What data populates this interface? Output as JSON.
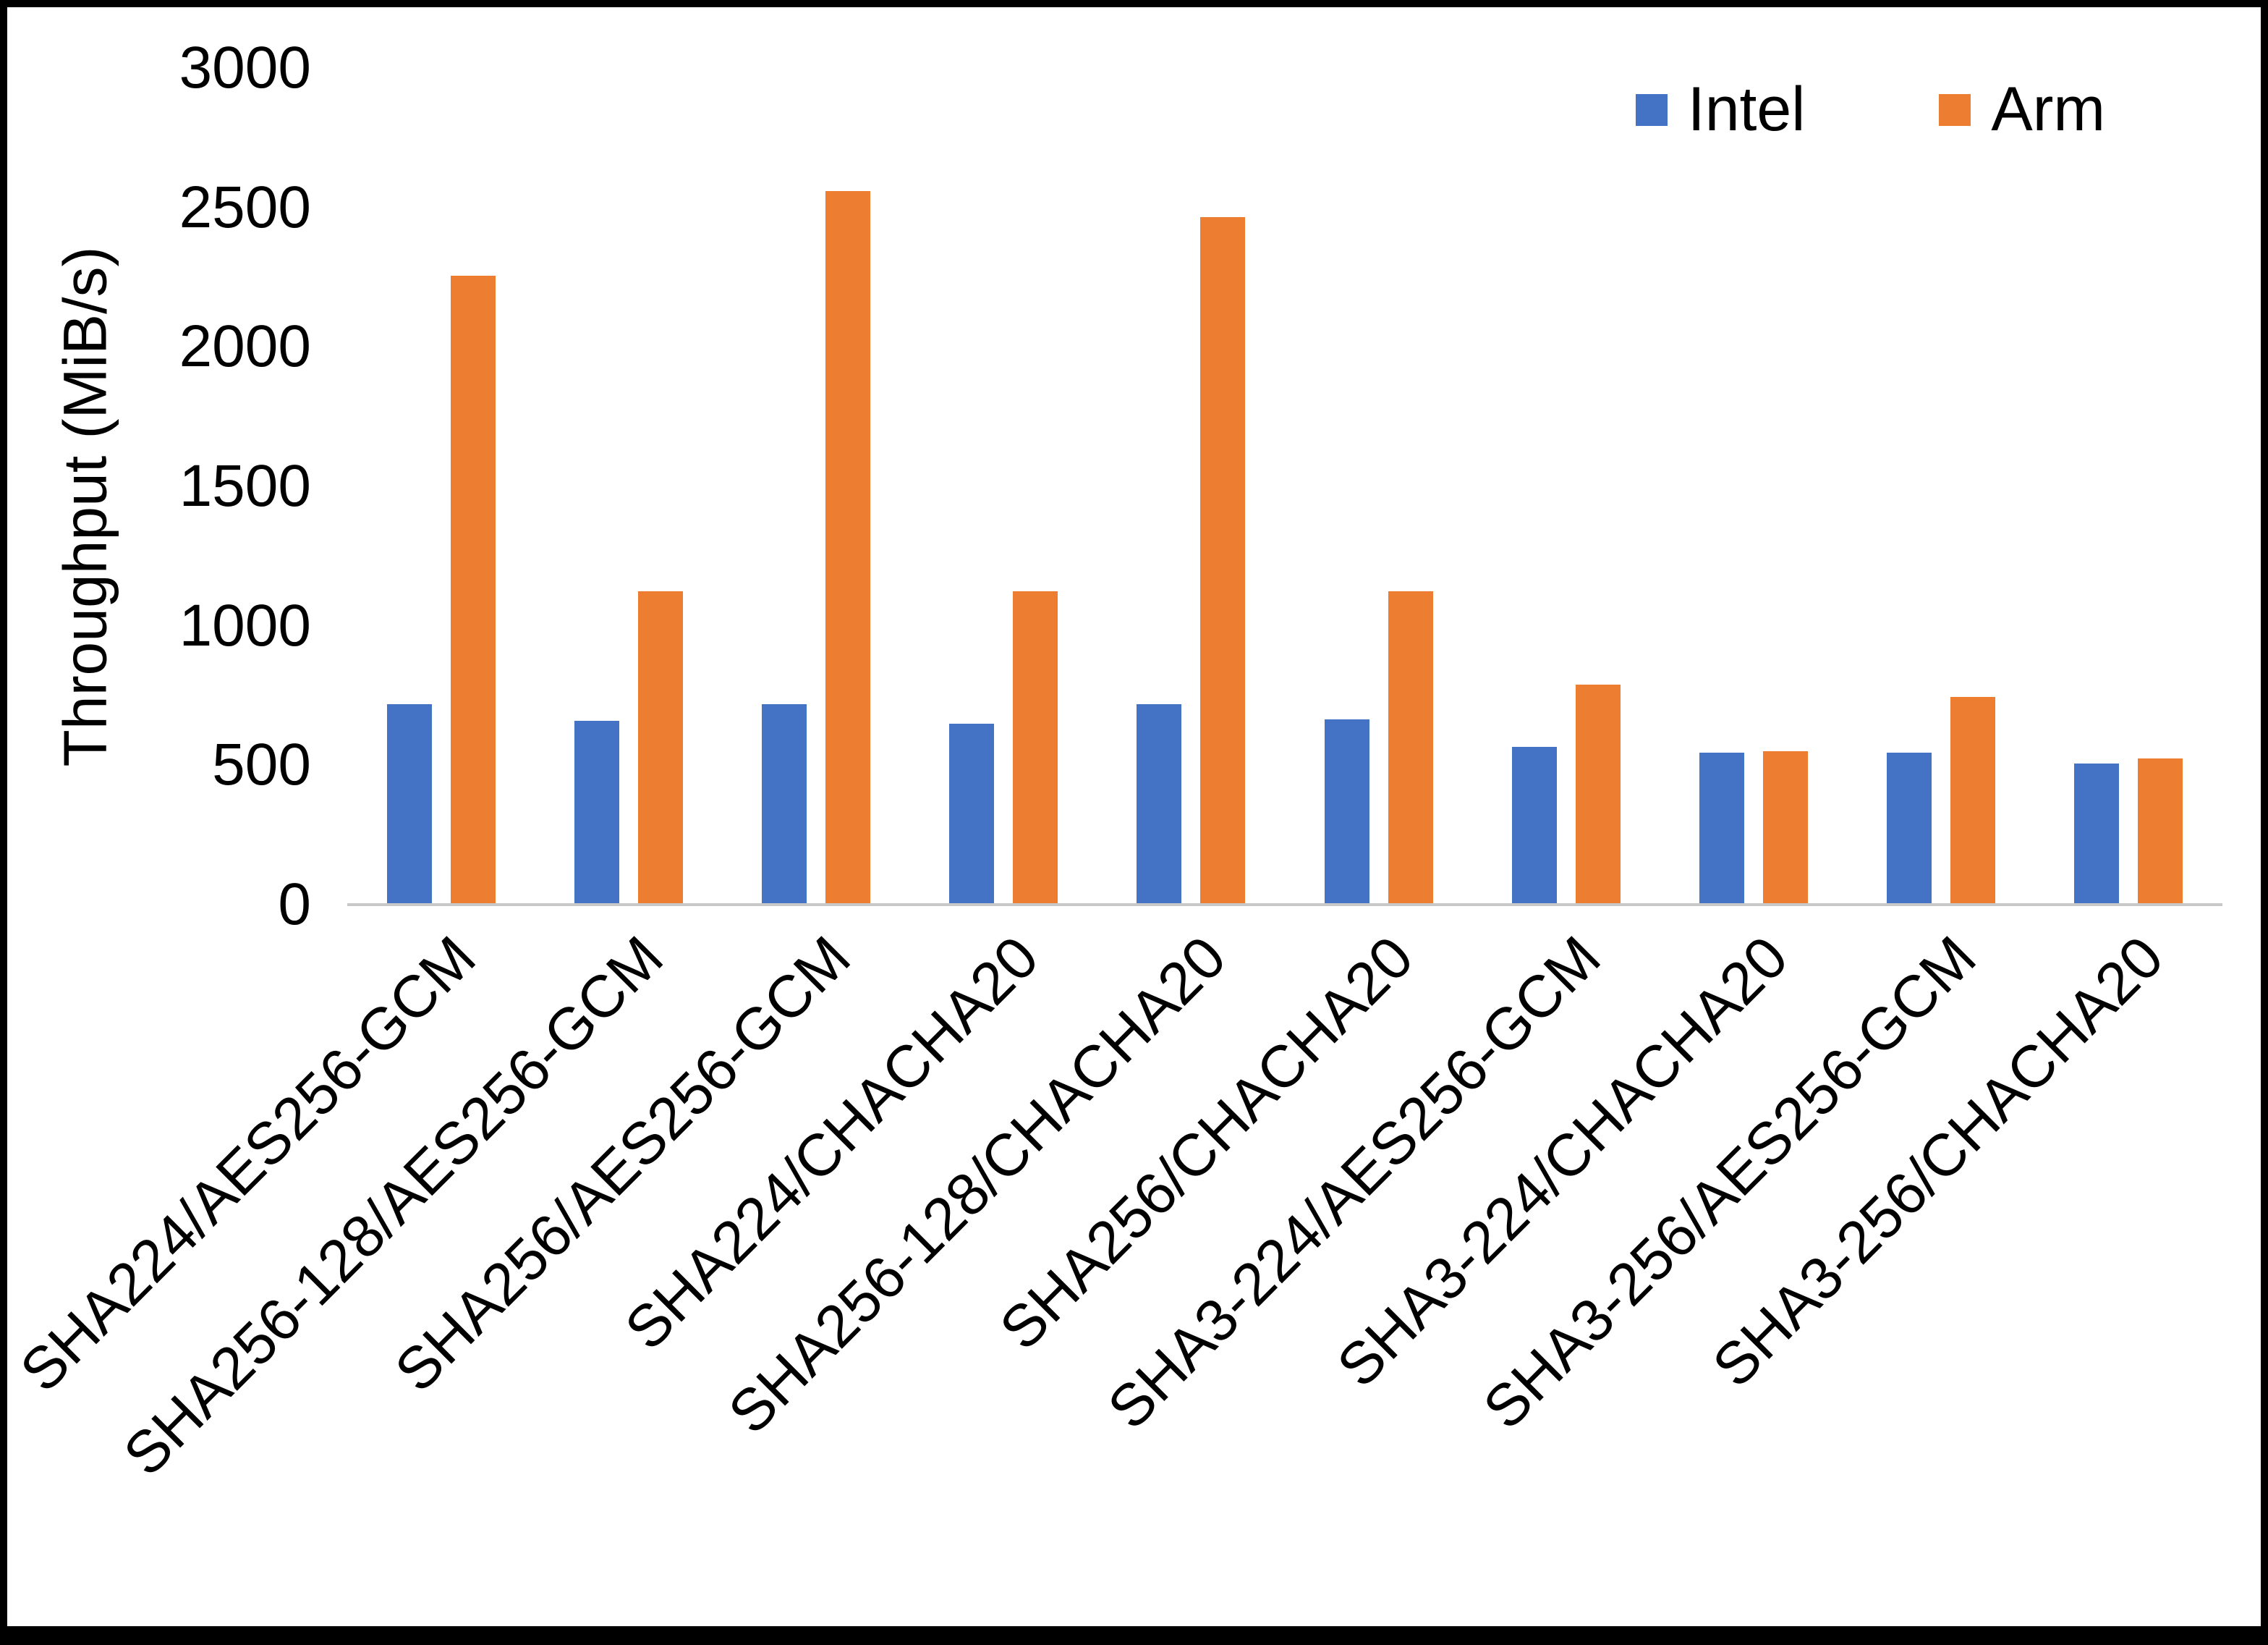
{
  "chart_data": {
    "type": "bar",
    "title": "",
    "xlabel": "",
    "ylabel": "Throughput (MiB/s)",
    "ylim": [
      0,
      3000
    ],
    "yticks": [
      0,
      500,
      1000,
      1500,
      2000,
      2500,
      3000
    ],
    "grid": false,
    "legend_position": "top-right",
    "categories": [
      "SHA224/AES256-GCM",
      "SHA256-128/AES256-GCM",
      "SHA256/AES256-GCM",
      "SHA224/CHACHA20",
      "SHA256-128/CHACHA20",
      "SHA256/CHACHA20",
      "SHA3-224/AES256-GCM",
      "SHA3-224/CHACHA20",
      "SHA3-256/AES256-GCM",
      "SHA3-256/CHACHA20"
    ],
    "series": [
      {
        "name": "Intel",
        "color": "#4472C4",
        "values": [
          720,
          660,
          720,
          650,
          720,
          665,
          565,
          545,
          545,
          505
        ]
      },
      {
        "name": "Arm",
        "color": "#ED7D31",
        "values": [
          2255,
          1125,
          2560,
          1125,
          2465,
          1125,
          790,
          550,
          745,
          525
        ]
      }
    ]
  }
}
